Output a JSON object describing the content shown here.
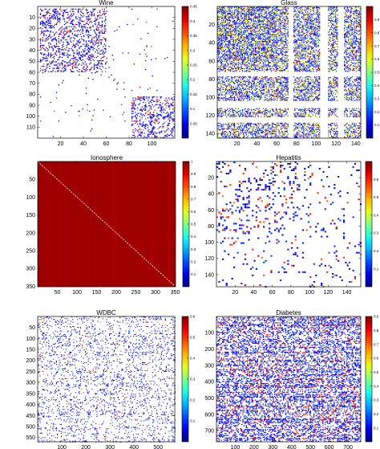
{
  "chart_data": [
    {
      "type": "heatmap",
      "title": "Wine",
      "n": 120,
      "xlim": [
        0,
        120
      ],
      "ylim": [
        0,
        120
      ],
      "xticks": [
        20,
        40,
        60,
        80,
        100
      ],
      "yticks": [
        10,
        20,
        30,
        40,
        50,
        60,
        70,
        80,
        90,
        100,
        110
      ],
      "colorbar": {
        "min": 0,
        "max": 0.45,
        "ticks": [
          0.05,
          0.1,
          0.15,
          0.2,
          0.25,
          0.3,
          0.35,
          0.4,
          0.45
        ]
      },
      "pattern": {
        "blocks": [
          [
            2,
            60
          ],
          [
            82,
            120
          ]
        ],
        "in_density": 0.3,
        "out_density": 0.01
      }
    },
    {
      "type": "heatmap",
      "title": "Glass",
      "n": 145,
      "xlim": [
        0,
        145
      ],
      "ylim": [
        0,
        145
      ],
      "xticks": [
        20,
        40,
        60,
        80,
        100,
        120,
        140
      ],
      "yticks": [
        20,
        40,
        60,
        80,
        100,
        120,
        140
      ],
      "colorbar": {
        "min": 0,
        "max": 1,
        "ticks": [
          0.1,
          0.2,
          0.3,
          0.4,
          0.5,
          0.6,
          0.7,
          0.8,
          0.9
        ]
      },
      "pattern": {
        "empty_bands": [
          [
            72,
            77
          ],
          [
            104,
            112
          ],
          [
            122,
            128
          ]
        ],
        "density": 0.55
      }
    },
    {
      "type": "heatmap",
      "title": "Ionosphere",
      "n": 351,
      "xlim": [
        0,
        351
      ],
      "ylim": [
        0,
        351
      ],
      "xticks": [
        50,
        100,
        150,
        200,
        250,
        300,
        350
      ],
      "yticks": [
        50,
        100,
        150,
        200,
        250,
        300,
        350
      ],
      "colorbar": {
        "min": 0,
        "max": 1,
        "ticks": [
          0.1,
          0.2,
          0.3,
          0.4,
          0.5,
          0.6,
          0.7,
          0.8,
          0.9,
          1
        ]
      },
      "pattern": {
        "fill_value": 0.97,
        "diagonal_value": 0
      }
    },
    {
      "type": "heatmap",
      "title": "Hepatitis",
      "n": 155,
      "xlim": [
        0,
        155
      ],
      "ylim": [
        0,
        155
      ],
      "xticks": [
        20,
        40,
        60,
        80,
        100,
        120,
        140
      ],
      "yticks": [
        20,
        40,
        60,
        80,
        100,
        120,
        140
      ],
      "colorbar": {
        "min": 0,
        "max": 0.7,
        "ticks": [
          0.1,
          0.2,
          0.3,
          0.4,
          0.5,
          0.6
        ]
      },
      "pattern": {
        "dense_block": [
          0,
          90
        ],
        "density": 0.05
      }
    },
    {
      "type": "heatmap",
      "title": "WDBC",
      "n": 569,
      "xlim": [
        0,
        569
      ],
      "ylim": [
        0,
        569
      ],
      "xticks": [
        100,
        200,
        300,
        400,
        500
      ],
      "yticks": [
        50,
        100,
        150,
        200,
        250,
        300,
        350,
        400,
        450,
        500,
        550
      ],
      "colorbar": {
        "min": 0,
        "max": 0.6,
        "ticks": [
          0.1,
          0.2,
          0.3,
          0.4,
          0.5,
          0.6
        ]
      },
      "pattern": {
        "density": 0.1
      }
    },
    {
      "type": "heatmap",
      "title": "Diabetes",
      "n": 768,
      "xlim": [
        0,
        768
      ],
      "ylim": [
        0,
        768
      ],
      "xticks": [
        100,
        200,
        300,
        400,
        500,
        600,
        700
      ],
      "yticks": [
        100,
        200,
        300,
        400,
        500,
        600,
        700
      ],
      "colorbar": {
        "min": 0,
        "max": 0.9,
        "ticks": [
          0.1,
          0.2,
          0.3,
          0.4,
          0.5,
          0.6,
          0.7,
          0.8,
          0.9
        ]
      },
      "pattern": {
        "density": 0.35
      }
    }
  ]
}
